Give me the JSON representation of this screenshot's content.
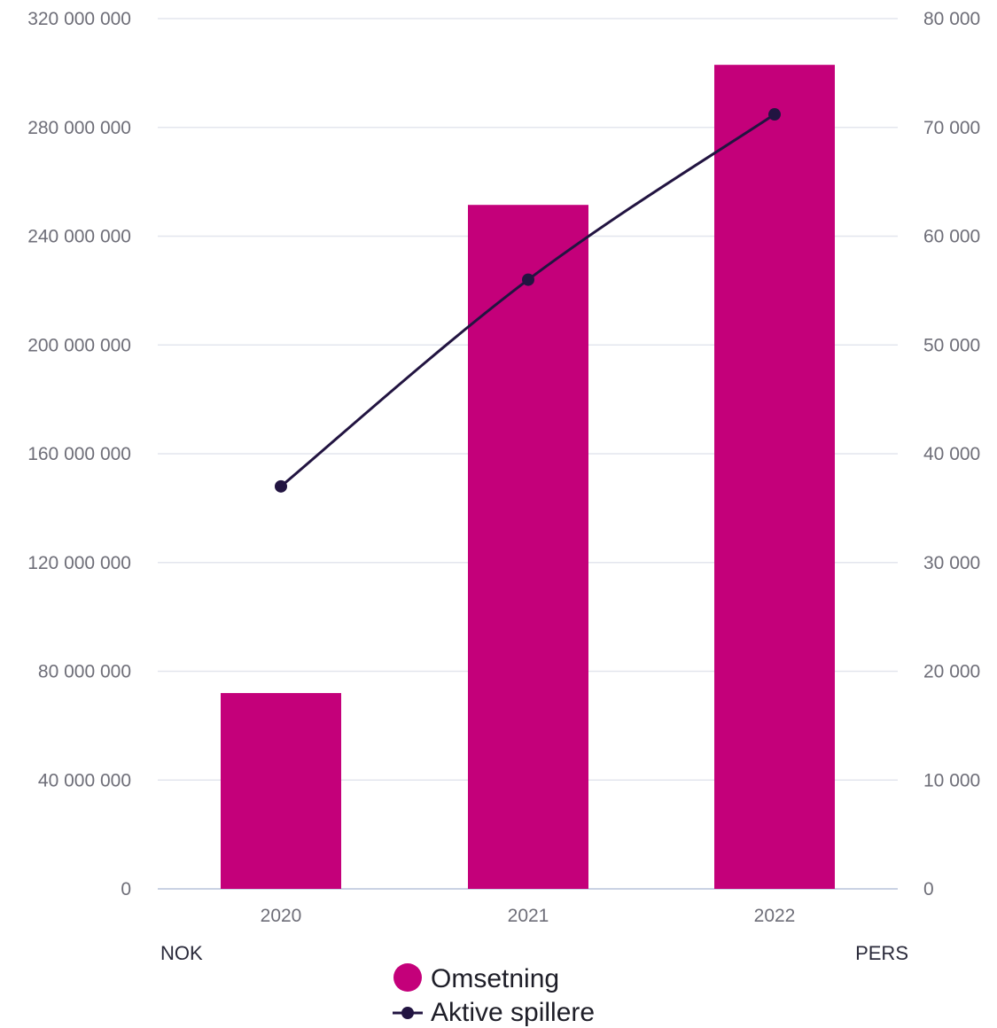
{
  "chart_data": {
    "type": "bar",
    "categories": [
      "2020",
      "2021",
      "2022"
    ],
    "series": [
      {
        "name": "Omsetning",
        "kind": "bar",
        "axis": "left",
        "color": "#c4007a",
        "values": [
          72000000,
          251500000,
          303000000
        ]
      },
      {
        "name": "Aktive spillere",
        "kind": "line",
        "axis": "right",
        "color": "#221441",
        "values": [
          37000,
          56000,
          71200
        ]
      }
    ],
    "y_left": {
      "unit_label": "NOK",
      "range": [
        0,
        320000000
      ],
      "ticks": [
        0,
        40000000,
        80000000,
        120000000,
        160000000,
        200000000,
        240000000,
        280000000,
        320000000
      ],
      "tick_labels": [
        "0",
        "40 000 000",
        "80 000 000",
        "120 000 000",
        "160 000 000",
        "200 000 000",
        "240 000 000",
        "280 000 000",
        "320 000 000"
      ]
    },
    "y_right": {
      "unit_label": "PERS",
      "range": [
        0,
        80000
      ],
      "ticks": [
        0,
        10000,
        20000,
        30000,
        40000,
        50000,
        60000,
        70000,
        80000
      ],
      "tick_labels": [
        "0",
        "10 000",
        "20 000",
        "30 000",
        "40 000",
        "50 000",
        "60 000",
        "70 000",
        "80 000"
      ]
    },
    "grid": true,
    "legend": "bottom-center",
    "colors": {
      "grid": "#e3e6ee",
      "baseline": "#c9d2e3"
    }
  }
}
